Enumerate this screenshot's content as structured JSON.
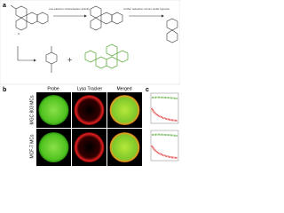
{
  "panels": {
    "a": {
      "label": "a",
      "arrow1": "one-electron nitroreduction activity",
      "arrow2": "further reduction occurs under hypoxia"
    },
    "b": {
      "label": "b",
      "columns": [
        "Probe",
        "Lyso Tracker",
        "Merged"
      ],
      "rows": [
        "MGC 803 MCs",
        "MCF-7 MCs"
      ]
    },
    "c": {
      "label": "c"
    }
  }
}
